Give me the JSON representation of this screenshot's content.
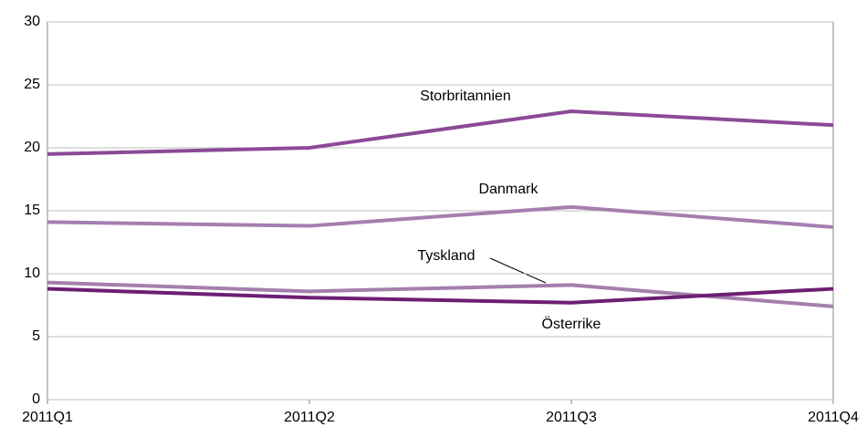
{
  "chart_data": {
    "type": "line",
    "categories": [
      "2011Q1",
      "2011Q2",
      "2011Q3",
      "2011Q4"
    ],
    "series": [
      {
        "name": "Storbritannien",
        "color": "#8b4a96",
        "values": [
          19.5,
          20.0,
          22.9,
          21.8
        ]
      },
      {
        "name": "Danmark",
        "color": "#a67eaf",
        "values": [
          14.1,
          13.8,
          15.3,
          13.7
        ]
      },
      {
        "name": "Tyskland",
        "color": "#a47fac",
        "values": [
          9.3,
          8.6,
          9.1,
          7.4
        ]
      },
      {
        "name": "Österrike",
        "color": "#6c1f74",
        "values": [
          8.8,
          8.1,
          7.7,
          8.8
        ]
      }
    ],
    "ylim": [
      0,
      30
    ],
    "yticks": [
      0,
      5,
      10,
      15,
      20,
      25,
      30
    ],
    "grid": true
  }
}
